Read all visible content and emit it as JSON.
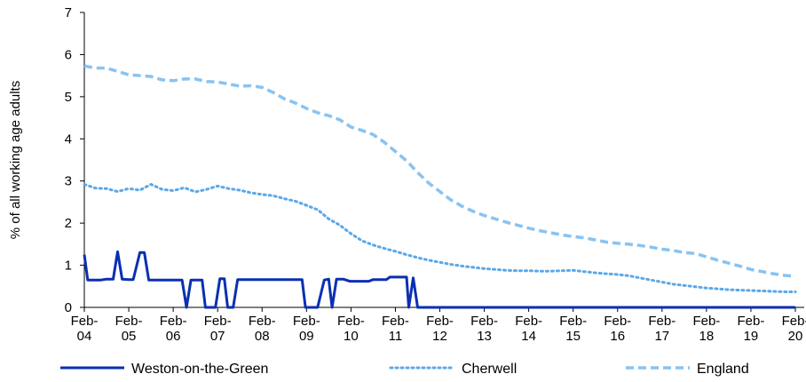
{
  "chart_data": {
    "type": "line",
    "title": "",
    "xlabel": "",
    "ylabel": "% of all working age adults",
    "ylim": [
      0,
      7
    ],
    "yticks": [
      "0",
      "1",
      "2",
      "3",
      "4",
      "5",
      "6",
      "7"
    ],
    "xticks": [
      {
        "top": "Feb-",
        "bottom": "04"
      },
      {
        "top": "Feb-",
        "bottom": "05"
      },
      {
        "top": "Feb-",
        "bottom": "06"
      },
      {
        "top": "Feb-",
        "bottom": "07"
      },
      {
        "top": "Feb-",
        "bottom": "08"
      },
      {
        "top": "Feb-",
        "bottom": "09"
      },
      {
        "top": "Feb-",
        "bottom": "10"
      },
      {
        "top": "Feb-",
        "bottom": "11"
      },
      {
        "top": "Feb-",
        "bottom": "12"
      },
      {
        "top": "Feb-",
        "bottom": "13"
      },
      {
        "top": "Feb-",
        "bottom": "14"
      },
      {
        "top": "Feb-",
        "bottom": "15"
      },
      {
        "top": "Feb-",
        "bottom": "16"
      },
      {
        "top": "Feb-",
        "bottom": "17"
      },
      {
        "top": "Feb-",
        "bottom": "18"
      },
      {
        "top": "Feb-",
        "bottom": "19"
      },
      {
        "top": "Feb-",
        "bottom": "20"
      }
    ],
    "x_unit": "quarters from Feb-04",
    "grid": false,
    "legend_position": "bottom",
    "series": [
      {
        "name": "Weston-on-the-Green",
        "color": "#0a2fb2",
        "style": "solid",
        "points": [
          [
            0,
            1.25
          ],
          [
            0.3,
            0.65
          ],
          [
            1,
            0.65
          ],
          [
            1.5,
            0.65
          ],
          [
            2,
            0.67
          ],
          [
            2.6,
            0.67
          ],
          [
            3,
            1.32
          ],
          [
            3.4,
            0.67
          ],
          [
            4,
            0.66
          ],
          [
            4.4,
            0.66
          ],
          [
            5,
            1.3
          ],
          [
            5.4,
            1.3
          ],
          [
            5.8,
            0.65
          ],
          [
            7,
            0.65
          ],
          [
            8,
            0.65
          ],
          [
            8.8,
            0.65
          ],
          [
            9.2,
            0
          ],
          [
            9.6,
            0.65
          ],
          [
            10.6,
            0.65
          ],
          [
            10.9,
            0
          ],
          [
            11.8,
            0
          ],
          [
            12.2,
            0.68
          ],
          [
            12.6,
            0.68
          ],
          [
            12.9,
            0
          ],
          [
            13.4,
            0
          ],
          [
            13.8,
            0.66
          ],
          [
            15,
            0.66
          ],
          [
            17,
            0.66
          ],
          [
            18,
            0.66
          ],
          [
            19,
            0.66
          ],
          [
            19.6,
            0.66
          ],
          [
            19.9,
            0
          ],
          [
            21,
            0
          ],
          [
            21.6,
            0.65
          ],
          [
            22,
            0.67
          ],
          [
            22.3,
            0
          ],
          [
            22.7,
            0.67
          ],
          [
            23.3,
            0.67
          ],
          [
            23.9,
            0.62
          ],
          [
            25,
            0.62
          ],
          [
            25.6,
            0.62
          ],
          [
            26,
            0.66
          ],
          [
            27.2,
            0.66
          ],
          [
            27.5,
            0.72
          ],
          [
            29,
            0.72
          ],
          [
            29.2,
            0
          ],
          [
            29.6,
            0.7
          ],
          [
            30,
            0
          ],
          [
            31,
            0
          ],
          [
            32,
            0
          ],
          [
            33,
            0
          ],
          [
            34,
            0
          ],
          [
            35,
            0
          ],
          [
            36,
            0
          ],
          [
            36.5,
            0
          ],
          [
            64,
            0
          ]
        ]
      },
      {
        "name": "Cherwell",
        "color": "#5aa8e8",
        "style": "dotted",
        "points": [
          [
            0,
            2.92
          ],
          [
            1,
            2.83
          ],
          [
            2,
            2.82
          ],
          [
            3,
            2.75
          ],
          [
            4,
            2.82
          ],
          [
            5,
            2.78
          ],
          [
            6,
            2.92
          ],
          [
            7,
            2.8
          ],
          [
            8,
            2.77
          ],
          [
            9,
            2.84
          ],
          [
            10,
            2.74
          ],
          [
            11,
            2.8
          ],
          [
            12,
            2.88
          ],
          [
            13,
            2.82
          ],
          [
            14,
            2.78
          ],
          [
            15,
            2.72
          ],
          [
            16,
            2.68
          ],
          [
            17,
            2.65
          ],
          [
            18,
            2.58
          ],
          [
            19,
            2.52
          ],
          [
            20,
            2.42
          ],
          [
            21,
            2.32
          ],
          [
            22,
            2.1
          ],
          [
            23,
            1.95
          ],
          [
            24,
            1.75
          ],
          [
            25,
            1.58
          ],
          [
            26,
            1.48
          ],
          [
            27,
            1.4
          ],
          [
            28,
            1.33
          ],
          [
            29,
            1.25
          ],
          [
            30,
            1.18
          ],
          [
            31,
            1.12
          ],
          [
            32,
            1.07
          ],
          [
            33,
            1.02
          ],
          [
            34,
            0.98
          ],
          [
            35,
            0.95
          ],
          [
            36,
            0.92
          ],
          [
            37,
            0.9
          ],
          [
            38,
            0.88
          ],
          [
            39,
            0.87
          ],
          [
            40,
            0.87
          ],
          [
            41,
            0.86
          ],
          [
            42,
            0.86
          ],
          [
            43,
            0.87
          ],
          [
            44,
            0.88
          ],
          [
            45,
            0.85
          ],
          [
            46,
            0.82
          ],
          [
            47,
            0.8
          ],
          [
            48,
            0.78
          ],
          [
            49,
            0.75
          ],
          [
            50,
            0.7
          ],
          [
            51,
            0.65
          ],
          [
            52,
            0.6
          ],
          [
            53,
            0.55
          ],
          [
            54,
            0.52
          ],
          [
            55,
            0.49
          ],
          [
            56,
            0.46
          ],
          [
            57,
            0.44
          ],
          [
            58,
            0.42
          ],
          [
            59,
            0.41
          ],
          [
            60,
            0.4
          ],
          [
            61,
            0.39
          ],
          [
            62,
            0.38
          ],
          [
            63,
            0.37
          ],
          [
            64,
            0.37
          ]
        ]
      },
      {
        "name": "England",
        "color": "#88c3f2",
        "style": "dashed",
        "points": [
          [
            0,
            5.73
          ],
          [
            1,
            5.68
          ],
          [
            2,
            5.68
          ],
          [
            3,
            5.6
          ],
          [
            4,
            5.52
          ],
          [
            5,
            5.5
          ],
          [
            6,
            5.48
          ],
          [
            7,
            5.4
          ],
          [
            8,
            5.38
          ],
          [
            9,
            5.42
          ],
          [
            10,
            5.42
          ],
          [
            11,
            5.36
          ],
          [
            12,
            5.35
          ],
          [
            13,
            5.3
          ],
          [
            14,
            5.25
          ],
          [
            15,
            5.26
          ],
          [
            16,
            5.22
          ],
          [
            17,
            5.1
          ],
          [
            18,
            4.95
          ],
          [
            19,
            4.85
          ],
          [
            20,
            4.72
          ],
          [
            21,
            4.62
          ],
          [
            22,
            4.55
          ],
          [
            23,
            4.45
          ],
          [
            24,
            4.28
          ],
          [
            25,
            4.2
          ],
          [
            26,
            4.1
          ],
          [
            27,
            3.92
          ],
          [
            28,
            3.7
          ],
          [
            29,
            3.48
          ],
          [
            30,
            3.2
          ],
          [
            31,
            2.95
          ],
          [
            32,
            2.75
          ],
          [
            33,
            2.55
          ],
          [
            34,
            2.4
          ],
          [
            35,
            2.28
          ],
          [
            36,
            2.18
          ],
          [
            37,
            2.1
          ],
          [
            38,
            2.02
          ],
          [
            39,
            1.95
          ],
          [
            40,
            1.88
          ],
          [
            41,
            1.82
          ],
          [
            42,
            1.77
          ],
          [
            43,
            1.72
          ],
          [
            44,
            1.68
          ],
          [
            45,
            1.65
          ],
          [
            46,
            1.6
          ],
          [
            47,
            1.55
          ],
          [
            48,
            1.52
          ],
          [
            49,
            1.5
          ],
          [
            50,
            1.47
          ],
          [
            51,
            1.43
          ],
          [
            52,
            1.38
          ],
          [
            53,
            1.35
          ],
          [
            54,
            1.3
          ],
          [
            55,
            1.28
          ],
          [
            56,
            1.2
          ],
          [
            57,
            1.12
          ],
          [
            58,
            1.05
          ],
          [
            59,
            0.98
          ],
          [
            60,
            0.9
          ],
          [
            61,
            0.85
          ],
          [
            62,
            0.8
          ],
          [
            63,
            0.76
          ],
          [
            64,
            0.74
          ]
        ]
      }
    ]
  }
}
